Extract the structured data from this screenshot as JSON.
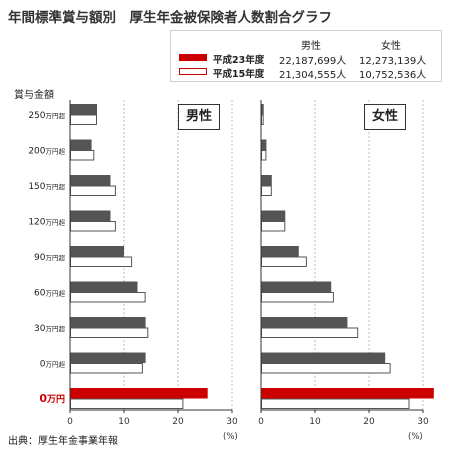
{
  "chart_data": {
    "type": "bar",
    "orientation": "horizontal",
    "title": "年間標準賞与額別　厚生年金被保険者人数割合グラフ",
    "ylabel": "賞与金額",
    "xlabel_unit": "(%)",
    "source": "出典：厚生年金事業年報",
    "categories": [
      "250万円超",
      "200万円超",
      "150万円超",
      "120万円超",
      "90万円超",
      "60万円超",
      "30万円超",
      "0万円超",
      "0万円"
    ],
    "highlight_category": "0万円",
    "xlim": [
      0,
      30
    ],
    "xticks": [
      0,
      10,
      20,
      30
    ],
    "series": [
      {
        "name": "平成23年度",
        "style": "filled",
        "values_male": [
          5,
          4,
          7.5,
          7.5,
          10,
          12.5,
          14,
          14,
          25.5
        ],
        "values_female": [
          0.5,
          1,
          2,
          4.5,
          7,
          13,
          16,
          23,
          32
        ]
      },
      {
        "name": "平成15年度",
        "style": "outline",
        "values_male": [
          5,
          4.5,
          8.5,
          8.5,
          11.5,
          14,
          14.5,
          13.5,
          21
        ],
        "values_female": [
          0.5,
          1,
          2,
          4.5,
          8.5,
          13.5,
          18,
          24,
          27.5
        ]
      }
    ],
    "panels": [
      {
        "key": "male",
        "label": "男性"
      },
      {
        "key": "female",
        "label": "女性"
      }
    ],
    "legend": {
      "header_male": "男性",
      "header_female": "女性",
      "rows": [
        {
          "label": "平成23年度",
          "male": "22,187,699人",
          "female": "12,273,139人"
        },
        {
          "label": "平成15年度",
          "male": "21,304,555人",
          "female": "10,752,536人"
        }
      ]
    },
    "colors": {
      "filled": "#555555",
      "outline_stroke": "#555555",
      "highlight": "#cc0000",
      "highlight_text": "#cc0000",
      "grid": "#bbbbbb"
    },
    "grid": "dashed-vertical",
    "legend_position": "top-right"
  }
}
